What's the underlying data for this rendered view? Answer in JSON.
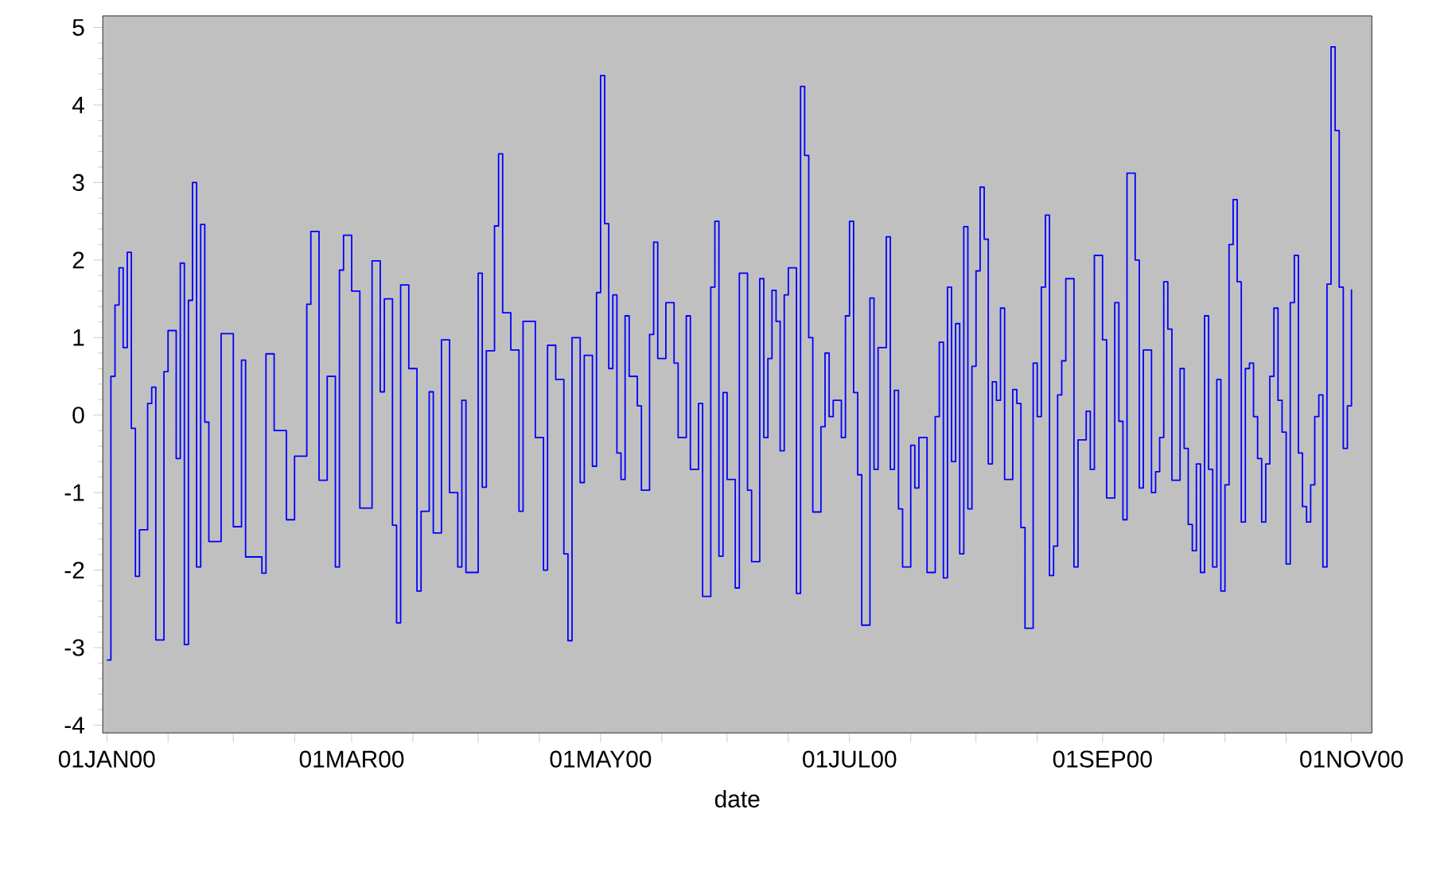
{
  "chart_data": {
    "type": "step",
    "xlabel": "date",
    "x": [
      "2000-01-01",
      "2000-01-02",
      "2000-01-03",
      "2000-01-04",
      "2000-01-05",
      "2000-01-06",
      "2000-01-07",
      "2000-01-08",
      "2000-01-09",
      "2000-01-11",
      "2000-01-12",
      "2000-01-13",
      "2000-01-15",
      "2000-01-16",
      "2000-01-18",
      "2000-01-19",
      "2000-01-20",
      "2000-01-21",
      "2000-01-22",
      "2000-01-23",
      "2000-01-24",
      "2000-01-25",
      "2000-01-26",
      "2000-01-29",
      "2000-02-01",
      "2000-02-03",
      "2000-02-04",
      "2000-02-08",
      "2000-02-09",
      "2000-02-11",
      "2000-02-14",
      "2000-02-16",
      "2000-02-19",
      "2000-02-20",
      "2000-02-22",
      "2000-02-24",
      "2000-02-26",
      "2000-02-27",
      "2000-02-28",
      "2000-03-01",
      "2000-03-03",
      "2000-03-06",
      "2000-03-08",
      "2000-03-09",
      "2000-03-11",
      "2000-03-12",
      "2000-03-13",
      "2000-03-15",
      "2000-03-17",
      "2000-03-18",
      "2000-03-20",
      "2000-03-21",
      "2000-03-23",
      "2000-03-25",
      "2000-03-27",
      "2000-03-28",
      "2000-03-29",
      "2000-04-01",
      "2000-04-02",
      "2000-04-03",
      "2000-04-05",
      "2000-04-06",
      "2000-04-07",
      "2000-04-09",
      "2000-04-11",
      "2000-04-12",
      "2000-04-15",
      "2000-04-17",
      "2000-04-18",
      "2000-04-20",
      "2000-04-22",
      "2000-04-23",
      "2000-04-24",
      "2000-04-26",
      "2000-04-27",
      "2000-04-29",
      "2000-04-30",
      "2000-05-01",
      "2000-05-02",
      "2000-05-03",
      "2000-05-04",
      "2000-05-05",
      "2000-05-06",
      "2000-05-07",
      "2000-05-08",
      "2000-05-10",
      "2000-05-11",
      "2000-05-13",
      "2000-05-14",
      "2000-05-15",
      "2000-05-17",
      "2000-05-19",
      "2000-05-20",
      "2000-05-22",
      "2000-05-23",
      "2000-05-25",
      "2000-05-26",
      "2000-05-28",
      "2000-05-29",
      "2000-05-30",
      "2000-05-31",
      "2000-06-01",
      "2000-06-03",
      "2000-06-04",
      "2000-06-06",
      "2000-06-07",
      "2000-06-09",
      "2000-06-10",
      "2000-06-11",
      "2000-06-12",
      "2000-06-13",
      "2000-06-14",
      "2000-06-15",
      "2000-06-16",
      "2000-06-18",
      "2000-06-19",
      "2000-06-20",
      "2000-06-21",
      "2000-06-22",
      "2000-06-24",
      "2000-06-25",
      "2000-06-26",
      "2000-06-27",
      "2000-06-29",
      "2000-06-30",
      "2000-07-01",
      "2000-07-02",
      "2000-07-03",
      "2000-07-04",
      "2000-07-06",
      "2000-07-07",
      "2000-07-08",
      "2000-07-10",
      "2000-07-11",
      "2000-07-12",
      "2000-07-13",
      "2000-07-14",
      "2000-07-16",
      "2000-07-17",
      "2000-07-18",
      "2000-07-20",
      "2000-07-22",
      "2000-07-23",
      "2000-07-24",
      "2000-07-25",
      "2000-07-26",
      "2000-07-27",
      "2000-07-28",
      "2000-07-29",
      "2000-07-30",
      "2000-07-31",
      "2000-08-01",
      "2000-08-02",
      "2000-08-03",
      "2000-08-04",
      "2000-08-05",
      "2000-08-06",
      "2000-08-07",
      "2000-08-08",
      "2000-08-10",
      "2000-08-11",
      "2000-08-12",
      "2000-08-13",
      "2000-08-15",
      "2000-08-16",
      "2000-08-17",
      "2000-08-18",
      "2000-08-19",
      "2000-08-20",
      "2000-08-21",
      "2000-08-22",
      "2000-08-23",
      "2000-08-25",
      "2000-08-26",
      "2000-08-28",
      "2000-08-29",
      "2000-08-30",
      "2000-09-01",
      "2000-09-02",
      "2000-09-04",
      "2000-09-05",
      "2000-09-06",
      "2000-09-07",
      "2000-09-09",
      "2000-09-10",
      "2000-09-11",
      "2000-09-13",
      "2000-09-14",
      "2000-09-15",
      "2000-09-16",
      "2000-09-17",
      "2000-09-18",
      "2000-09-20",
      "2000-09-21",
      "2000-09-22",
      "2000-09-23",
      "2000-09-24",
      "2000-09-25",
      "2000-09-26",
      "2000-09-27",
      "2000-09-28",
      "2000-09-29",
      "2000-09-30",
      "2000-10-01",
      "2000-10-02",
      "2000-10-03",
      "2000-10-04",
      "2000-10-05",
      "2000-10-06",
      "2000-10-07",
      "2000-10-08",
      "2000-10-09",
      "2000-10-10",
      "2000-10-11",
      "2000-10-12",
      "2000-10-13",
      "2000-10-14",
      "2000-10-15",
      "2000-10-16",
      "2000-10-17",
      "2000-10-18",
      "2000-10-19",
      "2000-10-20",
      "2000-10-21",
      "2000-10-22",
      "2000-10-23",
      "2000-10-24",
      "2000-10-25",
      "2000-10-26",
      "2000-10-27",
      "2000-10-28",
      "2000-10-29",
      "2000-10-30",
      "2000-10-31",
      "2000-11-01"
    ],
    "series": [
      {
        "color": "#0000ff",
        "values": [
          -3.16,
          0.5,
          1.42,
          1.9,
          0.87,
          2.1,
          -0.17,
          -2.08,
          -1.48,
          0.15,
          0.36,
          -2.9,
          0.56,
          1.09,
          -0.56,
          1.96,
          -2.96,
          1.48,
          3.0,
          -1.96,
          2.46,
          -0.09,
          -1.63,
          1.05,
          -1.44,
          0.71,
          -1.83,
          -2.04,
          0.79,
          -0.2,
          -1.35,
          -0.53,
          1.43,
          2.37,
          -0.84,
          0.5,
          -1.96,
          1.87,
          2.32,
          1.6,
          -1.2,
          1.99,
          0.3,
          1.5,
          -1.42,
          -2.68,
          1.68,
          0.6,
          -2.27,
          -1.24,
          0.3,
          -1.52,
          0.97,
          -1.0,
          -1.96,
          0.19,
          -2.03,
          1.83,
          -0.93,
          0.83,
          2.44,
          3.37,
          1.32,
          0.84,
          -1.24,
          1.21,
          -0.29,
          -2.0,
          0.9,
          0.46,
          -1.79,
          -2.91,
          1.0,
          -0.87,
          0.77,
          -0.66,
          1.58,
          4.38,
          2.47,
          0.6,
          1.55,
          -0.49,
          -0.83,
          1.28,
          0.5,
          0.12,
          -0.97,
          1.04,
          2.23,
          0.73,
          1.45,
          0.67,
          -0.29,
          1.28,
          -0.7,
          0.15,
          -2.34,
          1.65,
          2.5,
          -1.82,
          0.29,
          -0.83,
          -2.23,
          1.83,
          -0.97,
          -1.89,
          1.76,
          -0.29,
          0.73,
          1.61,
          1.21,
          -0.46,
          1.55,
          1.9,
          -2.3,
          4.24,
          3.35,
          1.0,
          -1.25,
          -0.15,
          0.8,
          -0.02,
          0.19,
          -0.29,
          1.28,
          2.5,
          0.29,
          -0.77,
          -2.71,
          1.51,
          -0.7,
          0.87,
          2.3,
          -0.7,
          0.32,
          -1.21,
          -1.96,
          -0.39,
          -0.94,
          -0.29,
          -2.03,
          -0.02,
          0.94,
          -2.1,
          1.65,
          -0.6,
          1.18,
          -1.79,
          2.43,
          -1.21,
          0.63,
          1.86,
          2.94,
          2.27,
          -0.63,
          0.43,
          0.19,
          1.38,
          -0.83,
          0.33,
          0.15,
          -1.45,
          -2.75,
          0.67,
          -0.02,
          1.65,
          2.58,
          -2.07,
          -1.69,
          0.26,
          0.7,
          1.76,
          -1.96,
          -0.32,
          0.05,
          -0.7,
          2.06,
          0.97,
          -1.07,
          1.45,
          -0.08,
          -1.35,
          3.12,
          2.0,
          -0.94,
          0.84,
          -1.0,
          -0.73,
          -0.29,
          1.72,
          1.11,
          -0.84,
          0.6,
          -0.43,
          -1.41,
          -1.75,
          -0.63,
          -2.03,
          1.28,
          -0.7,
          -1.96,
          0.46,
          -2.27,
          -0.9,
          2.2,
          2.78,
          1.72,
          -1.38,
          0.6,
          0.67,
          -0.02,
          -0.56,
          -1.38,
          -0.63,
          0.5,
          1.38,
          0.19,
          -0.22,
          -1.92,
          1.45,
          2.06,
          -0.49,
          -1.18,
          -1.38,
          -0.9,
          -0.02,
          0.26,
          -1.96,
          1.69,
          4.75,
          3.67,
          1.65,
          -0.43,
          0.12,
          1.62
        ]
      }
    ],
    "xlim": [
      "1999-12-31",
      "2000-11-06"
    ],
    "xticks": [
      {
        "value": "2000-01-01",
        "label": "01JAN00"
      },
      {
        "value": "2000-01-16",
        "label": null
      },
      {
        "value": "2000-02-01",
        "label": null
      },
      {
        "value": "2000-02-16",
        "label": null
      },
      {
        "value": "2000-03-01",
        "label": "01MAR00"
      },
      {
        "value": "2000-03-16",
        "label": null
      },
      {
        "value": "2000-04-01",
        "label": null
      },
      {
        "value": "2000-04-16",
        "label": null
      },
      {
        "value": "2000-05-01",
        "label": "01MAY00"
      },
      {
        "value": "2000-05-16",
        "label": null
      },
      {
        "value": "2000-06-01",
        "label": null
      },
      {
        "value": "2000-06-16",
        "label": null
      },
      {
        "value": "2000-07-01",
        "label": "01JUL00"
      },
      {
        "value": "2000-07-16",
        "label": null
      },
      {
        "value": "2000-08-01",
        "label": null
      },
      {
        "value": "2000-08-16",
        "label": null
      },
      {
        "value": "2000-09-01",
        "label": "01SEP00"
      },
      {
        "value": "2000-09-16",
        "label": null
      },
      {
        "value": "2000-10-01",
        "label": null
      },
      {
        "value": "2000-10-16",
        "label": null
      },
      {
        "value": "2000-11-01",
        "label": "01NOV00"
      }
    ],
    "ylim": [
      -4.1,
      5.15
    ],
    "yticks": [
      -4,
      -3,
      -2,
      -1,
      0,
      1,
      2,
      3,
      4,
      5
    ]
  }
}
